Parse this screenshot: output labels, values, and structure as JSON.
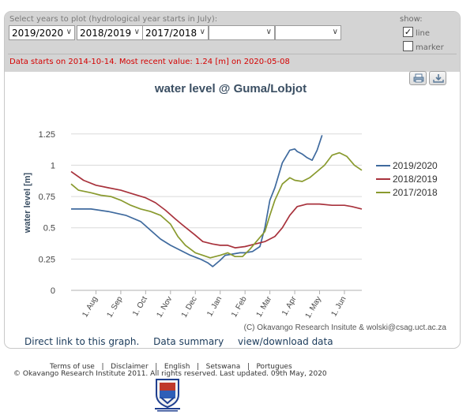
{
  "controls": {
    "select_label": "Select years to plot (hydrological year starts in July):",
    "year_selects": [
      "2019/2020",
      "2018/2019",
      "2017/2018",
      "",
      ""
    ],
    "show_label": "show:",
    "line_label": "line",
    "line_checked": true,
    "marker_label": "marker",
    "marker_checked": false,
    "status": "Data starts on 2014-10-14. Most recent value: 1.24 [m] on 2020-05-08"
  },
  "links": [
    "Direct link to this graph.",
    "Data summary",
    "view/download data"
  ],
  "footer": {
    "nav": [
      "Terms of use",
      "Disclaimer",
      "English",
      "Setswana",
      "Portugues"
    ],
    "copyright": "© Okavango Research Institute 2011.  All rights reserved. Last updated. 09th May, 2020"
  },
  "chart_data": {
    "type": "line",
    "title": "water level @ Guma/Lobjot",
    "ylabel": "water level [m]",
    "xlabel": "",
    "credit": "(C) Okavango Research Insitute & wolski@csag.uct.ac.za",
    "ylim": [
      0,
      1.4
    ],
    "xlim": [
      0,
      11.7
    ],
    "yticks": [
      0,
      0.25,
      0.5,
      0.75,
      1,
      1.25
    ],
    "ytick_labels": [
      "0",
      "0.25",
      "0.5",
      "0.75",
      "1",
      "1.25"
    ],
    "xticks": [
      1,
      2,
      3,
      4,
      5,
      6,
      7,
      8,
      9,
      10,
      11
    ],
    "xtick_labels": [
      "1. Aug",
      "1. Sep",
      "1. Oct",
      "1. Nov",
      "1. Dec",
      "1. Jan",
      "1. Feb",
      "1. Mar",
      "1. Apr",
      "1. May",
      "1. Jun"
    ],
    "grid": "horizontal",
    "legend_position": "right",
    "colors": {
      "2019/2020": "#3f6a9e",
      "2018/2019": "#a8323c",
      "2017/2018": "#899a2e"
    },
    "series": [
      {
        "name": "2019/2020",
        "color": "#3f6a9e",
        "x": [
          0,
          0.8,
          1.5,
          2.2,
          2.8,
          3.2,
          3.6,
          4.0,
          4.4,
          4.8,
          5.2,
          5.5,
          5.7,
          6.0,
          6.2,
          6.5,
          6.8,
          7.0,
          7.3,
          7.6,
          7.8,
          8.0,
          8.2,
          8.5,
          8.8,
          9.0,
          9.1,
          9.3,
          9.5,
          9.7,
          9.9,
          10.1
        ],
        "y": [
          0.65,
          0.65,
          0.63,
          0.6,
          0.55,
          0.48,
          0.41,
          0.36,
          0.32,
          0.28,
          0.25,
          0.22,
          0.19,
          0.24,
          0.28,
          0.29,
          0.3,
          0.3,
          0.31,
          0.35,
          0.5,
          0.72,
          0.82,
          1.02,
          1.12,
          1.13,
          1.11,
          1.09,
          1.06,
          1.04,
          1.12,
          1.24
        ]
      },
      {
        "name": "2018/2019",
        "color": "#a8323c",
        "x": [
          0,
          0.5,
          1.0,
          1.5,
          2.0,
          2.5,
          3.0,
          3.4,
          3.8,
          4.2,
          4.5,
          5.0,
          5.3,
          5.7,
          6.0,
          6.3,
          6.6,
          7.0,
          7.4,
          7.8,
          8.2,
          8.5,
          8.8,
          9.1,
          9.5,
          10.0,
          10.5,
          11.0,
          11.3,
          11.7
        ],
        "y": [
          0.95,
          0.88,
          0.84,
          0.82,
          0.8,
          0.77,
          0.74,
          0.7,
          0.64,
          0.57,
          0.52,
          0.44,
          0.39,
          0.37,
          0.36,
          0.36,
          0.34,
          0.35,
          0.37,
          0.39,
          0.43,
          0.5,
          0.6,
          0.67,
          0.69,
          0.69,
          0.68,
          0.68,
          0.67,
          0.65
        ]
      },
      {
        "name": "2017/2018",
        "color": "#899a2e",
        "x": [
          0,
          0.3,
          0.8,
          1.2,
          1.6,
          2.0,
          2.4,
          2.8,
          3.2,
          3.6,
          4.0,
          4.3,
          4.6,
          5.0,
          5.3,
          5.6,
          6.0,
          6.3,
          6.6,
          6.9,
          7.2,
          7.5,
          7.8,
          8.0,
          8.2,
          8.5,
          8.8,
          9.0,
          9.3,
          9.6,
          9.9,
          10.2,
          10.5,
          10.8,
          11.1,
          11.4,
          11.7
        ],
        "y": [
          0.85,
          0.8,
          0.78,
          0.76,
          0.75,
          0.72,
          0.68,
          0.65,
          0.63,
          0.6,
          0.53,
          0.43,
          0.36,
          0.3,
          0.28,
          0.26,
          0.28,
          0.3,
          0.27,
          0.27,
          0.33,
          0.4,
          0.47,
          0.6,
          0.72,
          0.85,
          0.9,
          0.88,
          0.87,
          0.9,
          0.95,
          1.0,
          1.08,
          1.1,
          1.07,
          1.0,
          0.96
        ]
      }
    ]
  }
}
